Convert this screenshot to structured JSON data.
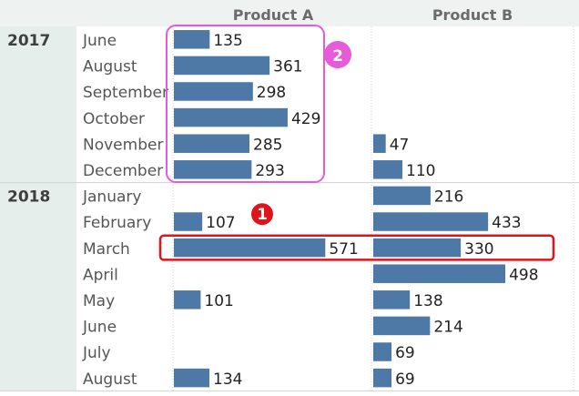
{
  "colors": {
    "bar": "#4e79a7",
    "year_band": "#e6eeec",
    "header_band": "#eef3f1",
    "grid": "#d0d0d0",
    "annotation_1": "#e0131b",
    "annotation_2": "#e65bd8"
  },
  "chart_data": {
    "type": "bar",
    "orientation": "horizontal",
    "columns": [
      "Product A",
      "Product B"
    ],
    "groups": [
      {
        "year": "2017",
        "months": [
          "June",
          "August",
          "September",
          "October",
          "November",
          "December"
        ]
      },
      {
        "year": "2018",
        "months": [
          "January",
          "February",
          "March",
          "April",
          "May",
          "June",
          "July",
          "August"
        ]
      }
    ],
    "series": [
      {
        "name": "Product A",
        "values": [
          135,
          361,
          298,
          429,
          285,
          293,
          null,
          107,
          571,
          null,
          101,
          null,
          null,
          134
        ]
      },
      {
        "name": "Product B",
        "values": [
          null,
          null,
          null,
          null,
          47,
          110,
          216,
          433,
          330,
          498,
          138,
          214,
          69,
          69
        ]
      }
    ],
    "annotations": [
      {
        "label": "1",
        "target": "2018 March, both products"
      },
      {
        "label": "2",
        "target": "2017 Product A"
      }
    ]
  }
}
